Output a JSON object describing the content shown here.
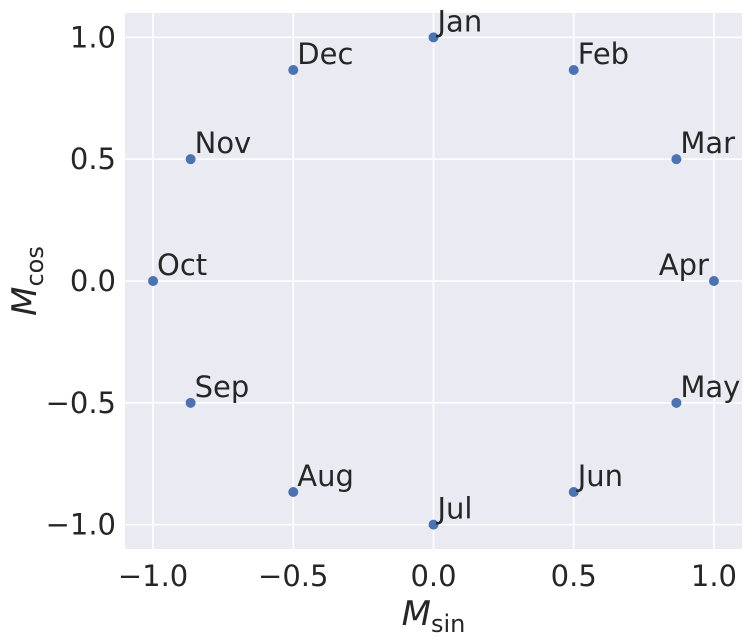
{
  "chart_data": {
    "type": "scatter",
    "title": "",
    "xlabel": {
      "main": "M",
      "sub": "sin"
    },
    "ylabel": {
      "main": "M",
      "sub": "cos"
    },
    "xlim": [
      -1.1,
      1.1
    ],
    "ylim": [
      -1.1,
      1.1
    ],
    "grid": true,
    "legend": "none",
    "xticks": [
      -1.0,
      -0.5,
      0.0,
      0.5,
      1.0
    ],
    "yticks": [
      -1.0,
      -0.5,
      0.0,
      0.5,
      1.0
    ],
    "xtick_labels": [
      "−1.0",
      "−0.5",
      "0.0",
      "0.5",
      "1.0"
    ],
    "ytick_labels": [
      "−1.0",
      "−0.5",
      "0.0",
      "0.5",
      "1.0"
    ],
    "colors": {
      "background": "#eaeaf2",
      "grid": "#ffffff",
      "point": "#4c72b0",
      "text": "#262626"
    },
    "points": [
      {
        "label": "Jan",
        "x": 0.0,
        "y": 1.0,
        "align": "right"
      },
      {
        "label": "Feb",
        "x": 0.5,
        "y": 0.866,
        "align": "right"
      },
      {
        "label": "Mar",
        "x": 0.866,
        "y": 0.5,
        "align": "right"
      },
      {
        "label": "Apr",
        "x": 1.0,
        "y": 0.0,
        "align": "left"
      },
      {
        "label": "May",
        "x": 0.866,
        "y": -0.5,
        "align": "right"
      },
      {
        "label": "Jun",
        "x": 0.5,
        "y": -0.866,
        "align": "right"
      },
      {
        "label": "Jul",
        "x": 0.0,
        "y": -1.0,
        "align": "right"
      },
      {
        "label": "Aug",
        "x": -0.5,
        "y": -0.866,
        "align": "right"
      },
      {
        "label": "Sep",
        "x": -0.866,
        "y": -0.5,
        "align": "right"
      },
      {
        "label": "Oct",
        "x": -1.0,
        "y": 0.0,
        "align": "right"
      },
      {
        "label": "Nov",
        "x": -0.866,
        "y": 0.5,
        "align": "right"
      },
      {
        "label": "Dec",
        "x": -0.5,
        "y": 0.866,
        "align": "right"
      }
    ]
  }
}
